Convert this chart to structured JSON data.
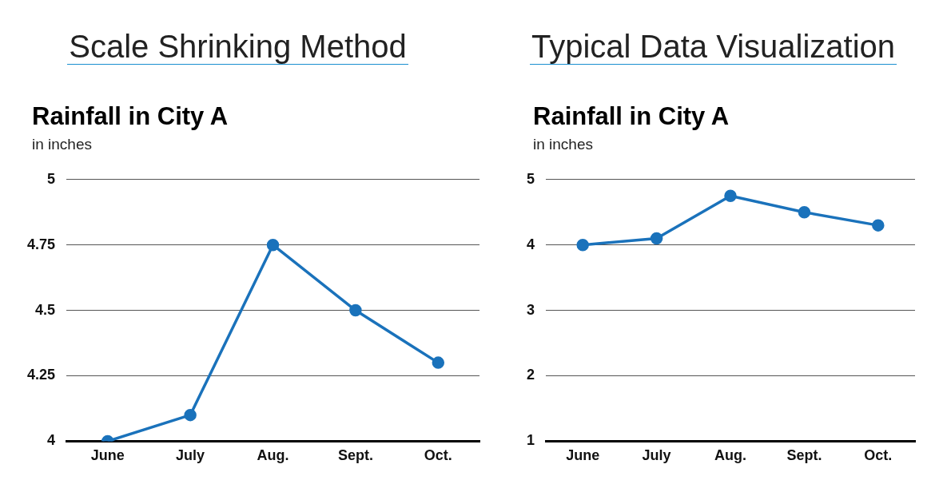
{
  "chart_data": [
    {
      "type": "line",
      "title": "Scale Shrinking Method",
      "subtitle": "Rainfall in City A",
      "ylabel": "in inches",
      "categories": [
        "June",
        "July",
        "Aug.",
        "Sept.",
        "Oct."
      ],
      "series": [
        {
          "color": "#1a72bb",
          "values": [
            4,
            4.1,
            4.75,
            4.5,
            4.3
          ]
        }
      ],
      "ylim": [
        4,
        5
      ],
      "yticks": [
        4,
        4.25,
        4.5,
        4.75,
        5
      ],
      "grid": "y",
      "legend": false,
      "marker": "circle",
      "line_style": "solid"
    },
    {
      "type": "line",
      "title": "Typical Data Visualization",
      "subtitle": "Rainfall in City A",
      "ylabel": "in inches",
      "categories": [
        "June",
        "July",
        "Aug.",
        "Sept.",
        "Oct."
      ],
      "series": [
        {
          "color": "#1a72bb",
          "values": [
            4,
            4.1,
            4.75,
            4.5,
            4.3
          ]
        }
      ],
      "ylim": [
        1,
        5
      ],
      "yticks": [
        1,
        2,
        3,
        4,
        5
      ],
      "grid": "y",
      "legend": false,
      "marker": "circle",
      "line_style": "solid"
    }
  ]
}
